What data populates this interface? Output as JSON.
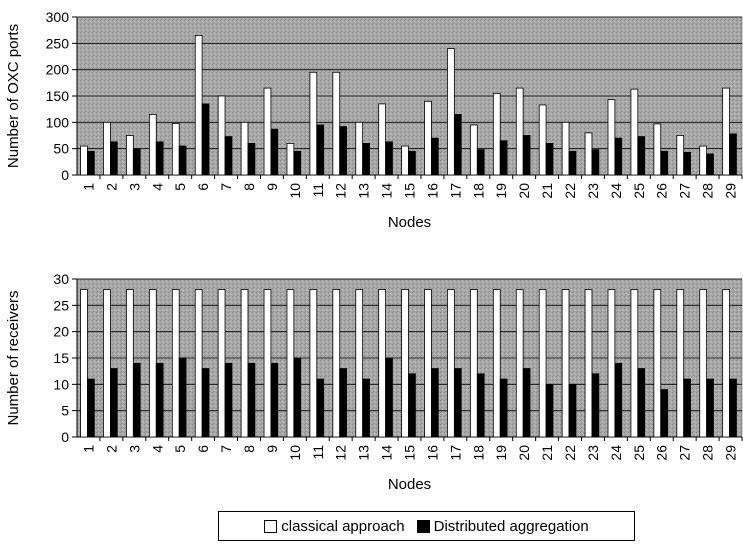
{
  "colors": {
    "classical": "#ffffff",
    "distributed": "#000000",
    "plot_bg": "#a4a4a4",
    "grid": "#000000"
  },
  "legend": {
    "classical_label": "classical approach",
    "distributed_label": "Distributed aggregation",
    "placement": "bottom-center"
  },
  "chart_data": [
    {
      "type": "bar",
      "xlabel": "Nodes",
      "ylabel": "Number of OXC ports",
      "ylim": [
        0,
        300
      ],
      "yticks": [
        0,
        50,
        100,
        150,
        200,
        250,
        300
      ],
      "grid": true,
      "categories": [
        "1",
        "2",
        "3",
        "4",
        "5",
        "6",
        "7",
        "8",
        "9",
        "10",
        "11",
        "12",
        "13",
        "14",
        "15",
        "16",
        "17",
        "18",
        "19",
        "20",
        "21",
        "22",
        "23",
        "24",
        "25",
        "26",
        "27",
        "28",
        "29"
      ],
      "series": [
        {
          "name": "classical approach",
          "values": [
            55,
            100,
            75,
            115,
            98,
            265,
            150,
            100,
            165,
            60,
            195,
            195,
            100,
            135,
            55,
            140,
            240,
            95,
            155,
            165,
            133,
            100,
            80,
            143,
            163,
            97,
            75,
            55,
            165
          ]
        },
        {
          "name": "Distributed aggregation",
          "values": [
            45,
            63,
            50,
            63,
            55,
            135,
            73,
            60,
            87,
            45,
            95,
            92,
            60,
            63,
            45,
            70,
            115,
            48,
            65,
            75,
            60,
            45,
            48,
            70,
            73,
            45,
            43,
            40,
            78
          ]
        }
      ]
    },
    {
      "type": "bar",
      "xlabel": "Nodes",
      "ylabel": "Number of receivers",
      "ylim": [
        0,
        30
      ],
      "yticks": [
        0,
        5,
        10,
        15,
        20,
        25,
        30
      ],
      "grid": true,
      "categories": [
        "1",
        "2",
        "3",
        "4",
        "5",
        "6",
        "7",
        "8",
        "9",
        "10",
        "11",
        "12",
        "13",
        "14",
        "15",
        "16",
        "17",
        "18",
        "19",
        "20",
        "21",
        "22",
        "23",
        "24",
        "25",
        "26",
        "27",
        "28",
        "29"
      ],
      "series": [
        {
          "name": "classical approach",
          "values": [
            28,
            28,
            28,
            28,
            28,
            28,
            28,
            28,
            28,
            28,
            28,
            28,
            28,
            28,
            28,
            28,
            28,
            28,
            28,
            28,
            28,
            28,
            28,
            28,
            28,
            28,
            28,
            28,
            28
          ]
        },
        {
          "name": "Distributed aggregation",
          "values": [
            11,
            13,
            14,
            14,
            15,
            13,
            14,
            14,
            14,
            15,
            11,
            13,
            11,
            15,
            12,
            13,
            13,
            12,
            11,
            13,
            10,
            10,
            12,
            14,
            13,
            9,
            11,
            11,
            11
          ]
        }
      ]
    }
  ]
}
